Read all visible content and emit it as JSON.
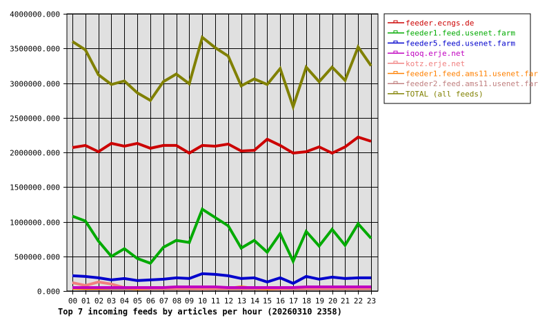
{
  "chart_data": {
    "type": "line",
    "title": "Top 7 incoming feeds by articles per hour (20260310 2358)",
    "xlabel": "",
    "ylabel": "",
    "ylim": [
      0,
      4000000
    ],
    "y_ticks": [
      "0.000",
      "500000.000",
      "1000000.000",
      "1500000.000",
      "2000000.000",
      "2500000.000",
      "3000000.000",
      "3500000.000",
      "4000000.000"
    ],
    "y_tick_values": [
      0,
      500000,
      1000000,
      1500000,
      2000000,
      2500000,
      3000000,
      3500000,
      4000000
    ],
    "grid": true,
    "legend_position": "right",
    "categories": [
      "00",
      "01",
      "02",
      "03",
      "04",
      "05",
      "06",
      "07",
      "08",
      "09",
      "10",
      "11",
      "12",
      "13",
      "14",
      "15",
      "16",
      "17",
      "18",
      "19",
      "20",
      "21",
      "22",
      "23"
    ],
    "series": [
      {
        "name": "feeder.ecngs.de",
        "color": "#cc0000",
        "values": [
          2070000,
          2100000,
          2010000,
          2130000,
          2090000,
          2130000,
          2060000,
          2100000,
          2100000,
          1990000,
          2100000,
          2090000,
          2120000,
          2020000,
          2030000,
          2190000,
          2100000,
          1990000,
          2010000,
          2080000,
          1990000,
          2080000,
          2220000,
          2160000
        ]
      },
      {
        "name": "feeder1.feed.usenet.farm",
        "color": "#00aa00",
        "values": [
          1080000,
          1010000,
          720000,
          500000,
          610000,
          470000,
          400000,
          630000,
          730000,
          700000,
          1180000,
          1060000,
          940000,
          620000,
          730000,
          560000,
          830000,
          430000,
          860000,
          650000,
          890000,
          660000,
          970000,
          760000
        ]
      },
      {
        "name": "feeder5.feed.usenet.farm",
        "color": "#0000cc",
        "values": [
          220000,
          210000,
          190000,
          160000,
          180000,
          150000,
          160000,
          170000,
          190000,
          180000,
          250000,
          240000,
          220000,
          180000,
          190000,
          130000,
          190000,
          110000,
          210000,
          170000,
          200000,
          180000,
          190000,
          190000
        ]
      },
      {
        "name": "iqoq.erje.net",
        "color": "#c000c0",
        "values": [
          50000,
          50000,
          50000,
          50000,
          50000,
          50000,
          50000,
          50000,
          60000,
          60000,
          60000,
          60000,
          50000,
          50000,
          50000,
          50000,
          50000,
          50000,
          60000,
          60000,
          60000,
          60000,
          60000,
          60000
        ]
      },
      {
        "name": "kotz.erje.net",
        "color": "#f08080",
        "values": [
          120000,
          80000,
          130000,
          100000,
          50000,
          40000,
          40000,
          40000,
          40000,
          40000,
          30000,
          40000,
          40000,
          40000,
          40000,
          40000,
          30000,
          40000,
          40000,
          40000,
          40000,
          40000,
          40000,
          40000
        ]
      },
      {
        "name": "feeder1.feed.ams11.usenet.farm",
        "color": "#ff8000",
        "values": [
          40000,
          40000,
          40000,
          50000,
          50000,
          30000,
          40000,
          40000,
          40000,
          40000,
          40000,
          40000,
          40000,
          60000,
          40000,
          30000,
          30000,
          50000,
          40000,
          40000,
          50000,
          40000,
          40000,
          40000
        ]
      },
      {
        "name": "feeder2.feed.ams11.usenet.farm",
        "color": "#c08080",
        "values": [
          40000,
          30000,
          30000,
          30000,
          30000,
          30000,
          30000,
          30000,
          30000,
          30000,
          30000,
          30000,
          30000,
          30000,
          30000,
          30000,
          30000,
          30000,
          30000,
          30000,
          30000,
          30000,
          30000,
          30000
        ]
      },
      {
        "name": "TOTAL (all feeds)",
        "color": "#808000",
        "values": [
          3600000,
          3480000,
          3120000,
          2980000,
          3030000,
          2860000,
          2750000,
          3020000,
          3130000,
          2990000,
          3660000,
          3510000,
          3390000,
          2960000,
          3060000,
          2980000,
          3210000,
          2660000,
          3230000,
          3020000,
          3230000,
          3040000,
          3520000,
          3250000
        ]
      }
    ]
  },
  "colors": {
    "plot_background": "#e0e0e0",
    "grid": "#000000",
    "text": "#000000"
  }
}
